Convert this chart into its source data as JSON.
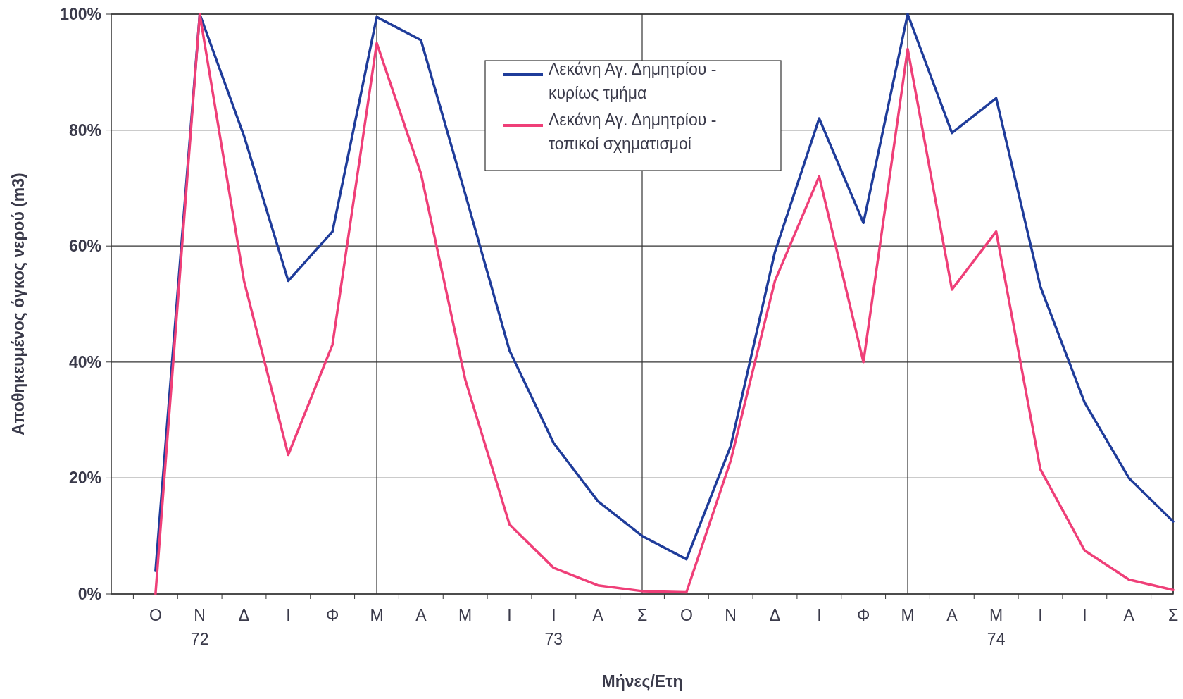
{
  "chart_data": {
    "type": "line",
    "xlabel": "Μήνες/Ετη",
    "ylabel": "Αποθηκευμένος όγκος νερού (m3)",
    "categories": [
      "Ο",
      "Ν\n72",
      "Δ",
      "Ι",
      "Φ",
      "Μ",
      "Α",
      "Μ",
      "Ι",
      "Ι\n73",
      "Α",
      "Σ",
      "Ο",
      "Ν",
      "Δ",
      "Ι",
      "Φ",
      "Μ",
      "Α",
      "Μ\n74",
      "Ι",
      "Ι",
      "Α",
      "Σ"
    ],
    "ylim": [
      0,
      100
    ],
    "yticks": [
      {
        "value": 0,
        "label": "0%"
      },
      {
        "value": 20,
        "label": "20%"
      },
      {
        "value": 40,
        "label": "40%"
      },
      {
        "value": 60,
        "label": "60%"
      },
      {
        "value": 80,
        "label": "80%"
      },
      {
        "value": 100,
        "label": "100%"
      }
    ],
    "grid": true,
    "legend": "top",
    "marker": "none",
    "line_style": "solid",
    "series": [
      {
        "name": "Λεκάνη Αγ. Δημητρίου - κυρίως τμήμα",
        "color": "#1f3c9a",
        "values": [
          4,
          100,
          79,
          54,
          62.5,
          99.5,
          95.5,
          69,
          42,
          26,
          16,
          10,
          6,
          25.5,
          59,
          82,
          64,
          100,
          79.5,
          85.5,
          53,
          33,
          20,
          12.5
        ]
      },
      {
        "name": "Λεκάνη Αγ. Δημητρίου - τοπικοί σχηματισμοί",
        "color": "#ef3f78",
        "values": [
          0,
          100,
          54,
          24,
          43,
          95,
          72.5,
          37,
          12,
          4.5,
          1.5,
          0.5,
          0.3,
          23,
          54,
          72,
          40,
          94,
          52.5,
          62.5,
          21.5,
          7.5,
          2.5,
          0.7
        ]
      }
    ]
  }
}
